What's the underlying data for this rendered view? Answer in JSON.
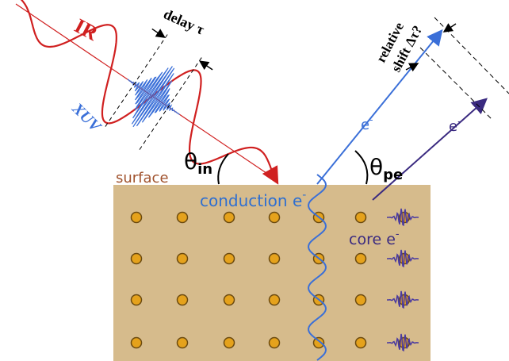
{
  "labels": {
    "ir": "IR",
    "delay": "delay τ",
    "xuv": "XUV",
    "theta_in": {
      "symbol": "θ",
      "subscript": "in"
    },
    "surface": "surface",
    "conduction": {
      "text": "conduction e",
      "superscript": "-"
    },
    "theta_pe": {
      "symbol": "θ",
      "subscript": "pe"
    },
    "electron_1": {
      "text": "e",
      "superscript": "-"
    },
    "electron_2": {
      "text": "e",
      "superscript": "-"
    },
    "relative": "relative",
    "shift": "shift Δτ?",
    "core": {
      "text": "core e",
      "superscript": "-"
    }
  }
}
